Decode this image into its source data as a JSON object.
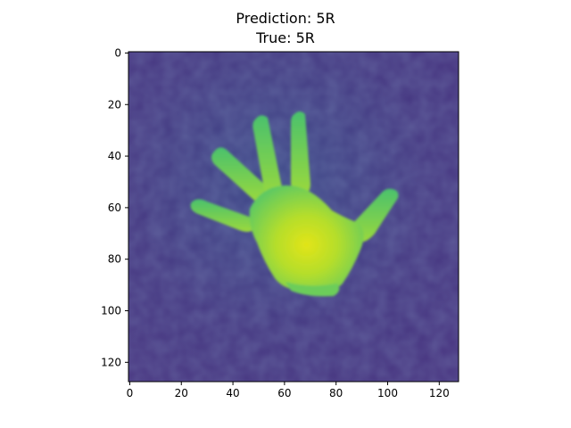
{
  "title": {
    "prediction": "Prediction: 5R",
    "true": "True: 5R"
  },
  "image": {
    "subject": "hand-thermal-image",
    "description_label": "open hand showing five fingers",
    "colormap": "viridis",
    "colors": {
      "background": "#453781",
      "background_light": "#3c4f8a",
      "hand_mid": "#6ccd5a",
      "hand_bright": "#c2df23",
      "hand_peak": "#e2e418",
      "axis": "#000000"
    },
    "pixel_extent": [
      0,
      128
    ]
  },
  "axes": {
    "x_ticks": [
      "0",
      "20",
      "40",
      "60",
      "80",
      "100",
      "120"
    ],
    "y_ticks": [
      "0",
      "20",
      "40",
      "60",
      "80",
      "100",
      "120"
    ],
    "x_tick_values": [
      0,
      20,
      40,
      60,
      80,
      100,
      120
    ],
    "y_tick_values": [
      0,
      20,
      40,
      60,
      80,
      100,
      120
    ]
  }
}
